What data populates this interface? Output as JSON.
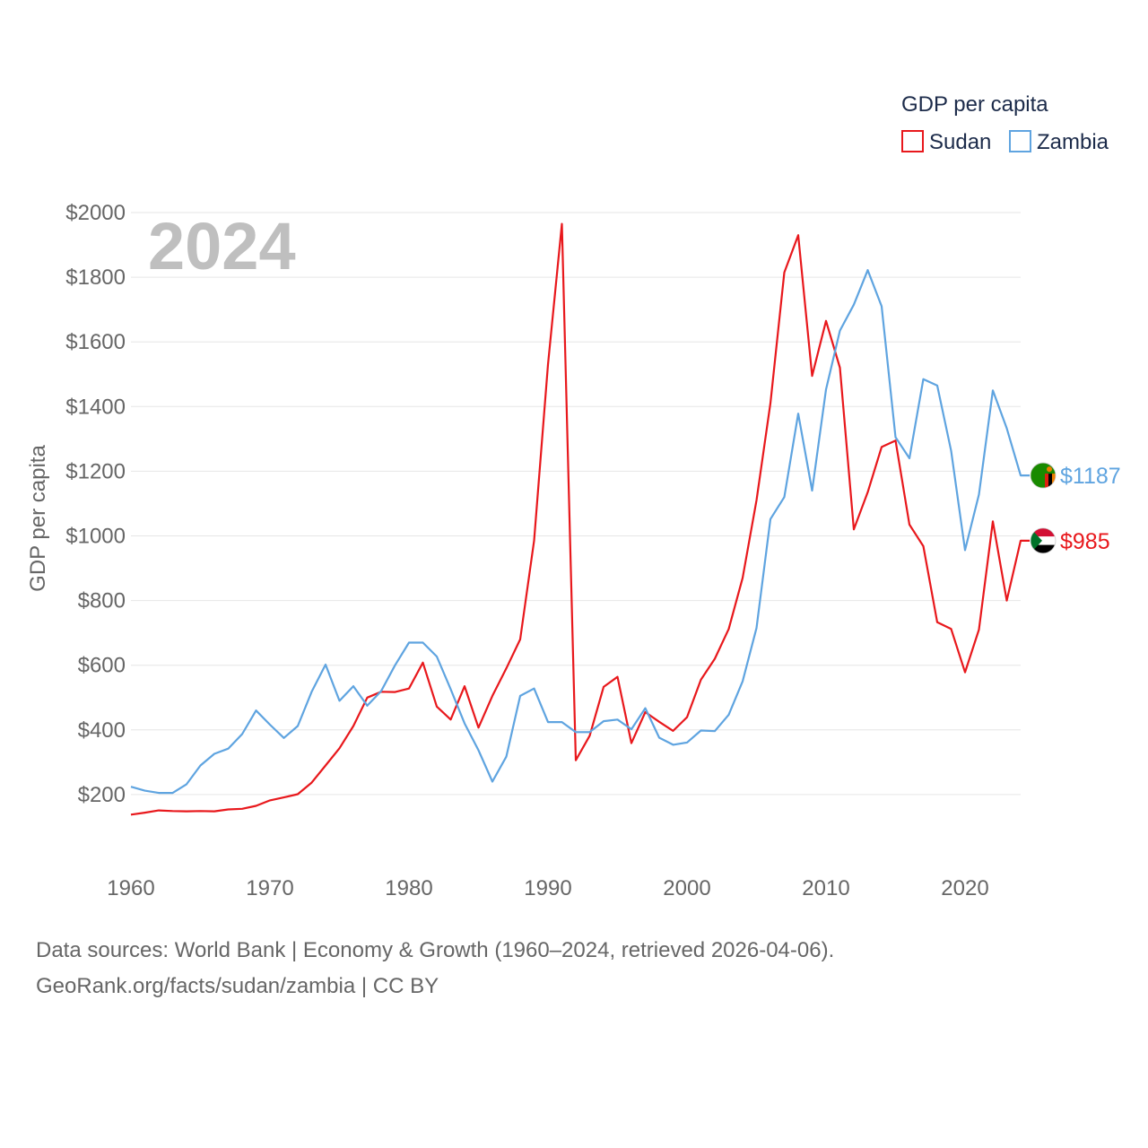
{
  "chart_data": {
    "type": "line",
    "title": "GDP per capita",
    "ylabel": "GDP per capita",
    "year_label": "2024",
    "ylim": [
      0,
      2000
    ],
    "xlim": [
      1960,
      2024
    ],
    "y_ticks": [
      200,
      400,
      600,
      800,
      1000,
      1200,
      1400,
      1600,
      1800,
      2000
    ],
    "y_tick_labels": [
      "$200",
      "$400",
      "$600",
      "$800",
      "$1000",
      "$1200",
      "$1400",
      "$1600",
      "$1800",
      "$2000"
    ],
    "x_ticks": [
      1960,
      1970,
      1980,
      1990,
      2000,
      2010,
      2020
    ],
    "x_tick_labels": [
      "1960",
      "1970",
      "1980",
      "1990",
      "2000",
      "2010",
      "2020"
    ],
    "grid": true,
    "legend_position": "top-right",
    "x": [
      1960,
      1961,
      1962,
      1963,
      1964,
      1965,
      1966,
      1967,
      1968,
      1969,
      1970,
      1971,
      1972,
      1973,
      1974,
      1975,
      1976,
      1977,
      1978,
      1979,
      1980,
      1981,
      1982,
      1983,
      1984,
      1985,
      1986,
      1987,
      1988,
      1989,
      1990,
      1991,
      1992,
      1993,
      1994,
      1995,
      1996,
      1997,
      1998,
      1999,
      2000,
      2001,
      2002,
      2003,
      2004,
      2005,
      2006,
      2007,
      2008,
      2009,
      2010,
      2011,
      2012,
      2013,
      2014,
      2015,
      2016,
      2017,
      2018,
      2019,
      2020,
      2021,
      2022,
      2023,
      2024
    ],
    "series": [
      {
        "name": "Sudan",
        "color": "#e8181c",
        "end_label": "$985",
        "flag_icon": "sudan-flag-icon",
        "values": [
          138,
          144,
          151,
          149,
          148,
          149,
          148,
          154,
          156,
          165,
          182,
          191,
          201,
          237,
          290,
          343,
          412,
          500,
          518,
          517,
          528,
          608,
          472,
          432,
          535,
          407,
          505,
          590,
          680,
          985,
          1530,
          1965,
          306,
          382,
          533,
          564,
          359,
          455,
          425,
          397,
          439,
          555,
          620,
          712,
          870,
          1110,
          1410,
          1815,
          1930,
          1495,
          1665,
          1520,
          1020,
          1135,
          1275,
          1295,
          1035,
          968,
          733,
          712,
          578,
          710,
          1045,
          800,
          985
        ]
      },
      {
        "name": "Zambia",
        "color": "#5fa4e0",
        "end_label": "$1187",
        "flag_icon": "zambia-flag-icon",
        "values": [
          224,
          212,
          205,
          205,
          232,
          290,
          326,
          342,
          387,
          460,
          416,
          375,
          412,
          518,
          602,
          490,
          535,
          475,
          520,
          600,
          670,
          670,
          627,
          526,
          420,
          337,
          240,
          317,
          505,
          528,
          424,
          424,
          393,
          393,
          427,
          432,
          402,
          467,
          376,
          354,
          361,
          398,
          396,
          447,
          550,
          715,
          1052,
          1120,
          1378,
          1140,
          1453,
          1635,
          1715,
          1822,
          1710,
          1305,
          1240,
          1485,
          1465,
          1263,
          956,
          1128,
          1450,
          1333,
          1187
        ]
      }
    ]
  },
  "source": {
    "line1": "Data sources: World Bank | Economy & Growth (1960–2024, retrieved 2026-04-06).",
    "line2": "GeoRank.org/facts/sudan/zambia | CC BY"
  }
}
